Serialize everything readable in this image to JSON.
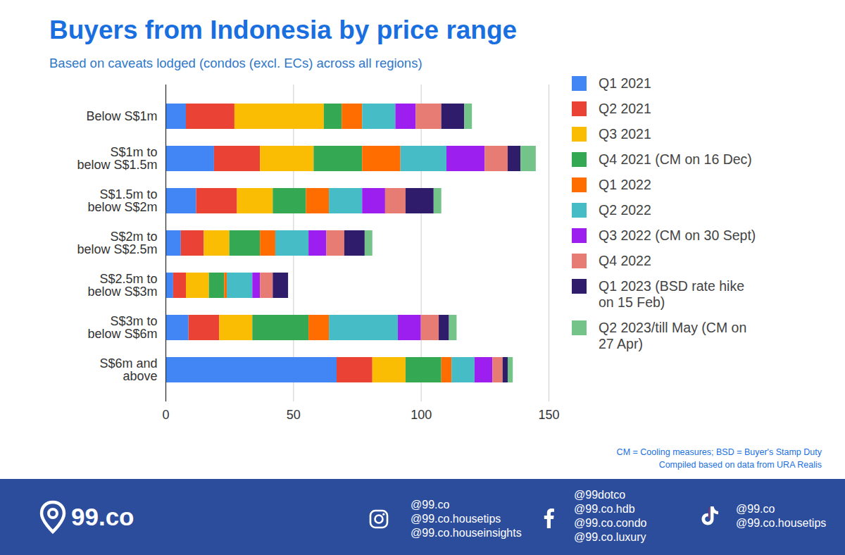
{
  "chart_data": {
    "type": "bar",
    "orientation": "horizontal",
    "stacked": true,
    "title": "Buyers from Indonesia by price range",
    "subtitle": "Based on caveats lodged (condos (excl. ECs) across all regions)",
    "categories": [
      "Below S$1m",
      "S$1m to\nbelow S$1.5m",
      "S$1.5m to\nbelow S$2m",
      "S$2m to\nbelow S$2.5m",
      "S$2.5m to\nbelow S$3m",
      "S$3m to\nbelow S$6m",
      "S$6m and\nabove"
    ],
    "series": [
      {
        "name": "Q1 2021",
        "color": "#4285f4",
        "values": [
          8,
          19,
          12,
          6,
          3,
          9,
          67
        ]
      },
      {
        "name": "Q2 2021",
        "color": "#ea4335",
        "values": [
          19,
          18,
          16,
          9,
          5,
          12,
          14
        ]
      },
      {
        "name": "Q3 2021",
        "color": "#fbbc04",
        "values": [
          35,
          21,
          14,
          10,
          9,
          13,
          13
        ]
      },
      {
        "name": "Q4 2021 (CM on 16 Dec)",
        "color": "#34a853",
        "values": [
          7,
          19,
          13,
          12,
          6,
          22,
          14
        ]
      },
      {
        "name": "Q1 2022",
        "color": "#ff6d01",
        "values": [
          8,
          15,
          9,
          6,
          1,
          8,
          4
        ]
      },
      {
        "name": "Q2 2022",
        "color": "#46bdc6",
        "values": [
          13,
          18,
          13,
          13,
          10,
          27,
          9
        ]
      },
      {
        "name": "Q3 2022 (CM on 30 Sept)",
        "color": "#9d1ff0",
        "values": [
          8,
          15,
          9,
          7,
          3,
          9,
          7
        ]
      },
      {
        "name": "Q4 2022",
        "color": "#e67c73",
        "values": [
          10,
          9,
          8,
          7,
          5,
          7,
          4
        ]
      },
      {
        "name": "Q1 2023 (BSD rate hike on 15 Feb)",
        "color": "#2f1d6b",
        "values": [
          9,
          5,
          11,
          8,
          6,
          4,
          2
        ]
      },
      {
        "name": "Q2 2023/till May (CM on 27 Apr)",
        "color": "#74c48a",
        "values": [
          3,
          6,
          3,
          3,
          0,
          3,
          2
        ]
      }
    ],
    "xlim": [
      0,
      150
    ],
    "xticks": [
      0,
      50,
      100,
      150
    ],
    "grid": true,
    "legend": "right",
    "annotations": [
      "CM = Cooling measures; BSD = Buyer's Stamp Duty",
      "Compiled based on data from URA Realis"
    ],
    "footer": {
      "logo": "99.co",
      "instagram": [
        "@99.co",
        "@99.co.housetips",
        "@99.co.houseinsights"
      ],
      "facebook": [
        "@99dotco",
        "@99.co.hdb",
        "@99.co.condo",
        "@99.co.luxury"
      ],
      "tiktok": [
        "@99.co",
        "@99.co.housetips"
      ]
    }
  }
}
